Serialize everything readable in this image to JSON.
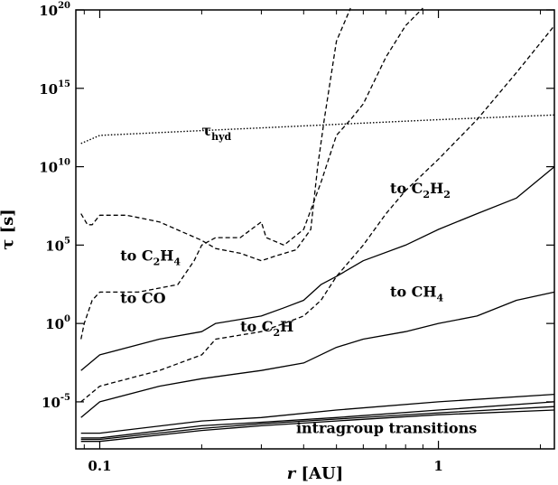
{
  "chart_data": {
    "type": "line",
    "xlabel_var": "r",
    "xlabel_unit": "[AU]",
    "ylabel_var": "τ",
    "ylabel_unit": "[s]",
    "x_scale": "log",
    "y_scale": "log",
    "xlim": [
      0.085,
      2.2
    ],
    "ylim": [
      1e-08,
      1e+20
    ],
    "x_ticks": [
      {
        "value": 0.1,
        "label": "0.1"
      },
      {
        "value": 1,
        "label": "1"
      }
    ],
    "y_ticks": [
      {
        "value": 1e-05,
        "base": "10",
        "exp": "-5"
      },
      {
        "value": 1.0,
        "base": "10",
        "exp": "0"
      },
      {
        "value": 100000.0,
        "base": "10",
        "exp": "5"
      },
      {
        "value": 10000000000.0,
        "base": "10",
        "exp": "10"
      },
      {
        "value": 1000000000000000.0,
        "base": "10",
        "exp": "15"
      },
      {
        "value": 1e+20,
        "base": "10",
        "exp": "20"
      }
    ],
    "annotations": [
      {
        "id": "tau-hyd",
        "main": "τ",
        "sub": "hyd",
        "anchor_x": 0.2,
        "anchor_y": 1000000000000.0
      },
      {
        "id": "to-c2h4",
        "pre": "to C",
        "sub1": "2",
        "mid": "H",
        "sub2": "4",
        "anchor_x": 0.115,
        "anchor_y": 10000.0
      },
      {
        "id": "to-co",
        "pre": "to CO",
        "anchor_x": 0.115,
        "anchor_y": 20.0
      },
      {
        "id": "to-c2h",
        "pre": "to C",
        "sub1": "2",
        "mid": "H",
        "anchor_x": 0.26,
        "anchor_y": 0.3
      },
      {
        "id": "to-c2h2",
        "pre": "to C",
        "sub1": "2",
        "mid": "H",
        "sub2": "2",
        "anchor_x": 0.72,
        "anchor_y": 200000000.0
      },
      {
        "id": "to-ch4",
        "pre": "to CH",
        "sub2": "4",
        "anchor_x": 0.72,
        "anchor_y": 50.0
      },
      {
        "id": "intragroup",
        "pre": "intragroup transitions",
        "anchor_x": 0.38,
        "anchor_y": 1e-07
      }
    ],
    "series": [
      {
        "id": "tau-hyd",
        "style": "dotted",
        "x": [
          0.088,
          0.1,
          0.2,
          0.3,
          0.5,
          1.0,
          2.2
        ],
        "y": [
          300000000000.0,
          1000000000000.0,
          2000000000000.0,
          3000000000000.0,
          5000000000000.0,
          10000000000000.0,
          20000000000000.0
        ]
      },
      {
        "id": "to-c2h4",
        "style": "dashed",
        "x": [
          0.088,
          0.092,
          0.095,
          0.1,
          0.12,
          0.15,
          0.2,
          0.22,
          0.26,
          0.3,
          0.33,
          0.38,
          0.42,
          0.44,
          0.46,
          0.5,
          0.55
        ],
        "y": [
          10000000.0,
          2000000.0,
          2000000.0,
          8000000.0,
          8000000.0,
          3000000.0,
          200000.0,
          60000.0,
          30000.0,
          10000.0,
          20000.0,
          50000.0,
          1000000.0,
          10000000000.0,
          10000000000000.0,
          1e+18,
          1e+21
        ]
      },
      {
        "id": "to-co",
        "style": "dashed",
        "x": [
          0.088,
          0.09,
          0.095,
          0.1,
          0.13,
          0.17,
          0.19,
          0.2,
          0.22,
          0.26,
          0.3,
          0.31,
          0.35,
          0.4,
          0.45,
          0.5,
          0.55,
          0.6,
          0.7,
          0.8,
          0.9
        ],
        "y": [
          0.1,
          1.0,
          30.0,
          100.0,
          100.0,
          300.0,
          10000.0,
          100000.0,
          300000.0,
          300000.0,
          3000000.0,
          300000.0,
          100000.0,
          1000000.0,
          1000000000.0,
          1000000000000.0,
          10000000000000.0,
          100000000000000.0,
          1e+17,
          1e+19,
          1e+21
        ]
      },
      {
        "id": "to-c2h2",
        "style": "dashed",
        "x": [
          0.088,
          0.1,
          0.15,
          0.2,
          0.22,
          0.3,
          0.35,
          0.4,
          0.45,
          0.5,
          0.6,
          0.7,
          0.8,
          1.0,
          1.3,
          1.7,
          2.2
        ],
        "y": [
          1e-05,
          0.0001,
          0.001,
          0.01,
          0.1,
          0.3,
          1.0,
          3.0,
          30.0,
          1000.0,
          100000.0,
          10000000.0,
          300000000.0,
          30000000000.0,
          10000000000000.0,
          1e+16,
          1e+19
        ]
      },
      {
        "id": "to-c2h",
        "style": "solid",
        "x": [
          0.088,
          0.1,
          0.15,
          0.2,
          0.22,
          0.3,
          0.35,
          0.4,
          0.45,
          0.5,
          0.6,
          0.8,
          1.0,
          1.3,
          1.7,
          2.2
        ],
        "y": [
          0.001,
          0.01,
          0.1,
          0.3,
          1.0,
          3.0,
          10.0,
          30.0,
          300.0,
          1000.0,
          10000.0,
          100000.0,
          1000000.0,
          10000000.0,
          100000000.0,
          10000000000.0
        ]
      },
      {
        "id": "to-ch4",
        "style": "solid",
        "x": [
          0.088,
          0.1,
          0.15,
          0.2,
          0.3,
          0.4,
          0.5,
          0.6,
          0.8,
          1.0,
          1.3,
          1.7,
          2.2
        ],
        "y": [
          1e-06,
          1e-05,
          0.0001,
          0.0003,
          0.001,
          0.003,
          0.03,
          0.1,
          0.3,
          1.0,
          3.0,
          30.0,
          100.0
        ]
      },
      {
        "id": "intragroup-1",
        "style": "solid",
        "x": [
          0.088,
          0.1,
          0.2,
          0.3,
          0.5,
          1.0,
          2.2
        ],
        "y": [
          1e-07,
          1e-07,
          6e-07,
          1e-06,
          3e-06,
          1e-05,
          3e-05
        ]
      },
      {
        "id": "intragroup-2",
        "style": "solid",
        "x": [
          0.088,
          0.1,
          0.2,
          0.3,
          0.5,
          1.0,
          2.2
        ],
        "y": [
          5e-08,
          5e-08,
          3e-07,
          5e-07,
          1e-06,
          3e-06,
          1e-05
        ]
      },
      {
        "id": "intragroup-3",
        "style": "solid",
        "x": [
          0.088,
          0.1,
          0.2,
          0.3,
          0.5,
          1.0,
          2.2
        ],
        "y": [
          4e-08,
          4e-08,
          2e-07,
          4e-07,
          8e-07,
          2e-06,
          5e-06
        ]
      },
      {
        "id": "intragroup-4",
        "style": "solid",
        "x": [
          0.088,
          0.1,
          0.2,
          0.3,
          0.5,
          1.0,
          2.2
        ],
        "y": [
          3e-08,
          3e-08,
          1.5e-07,
          3e-07,
          6e-07,
          1.5e-06,
          3e-06
        ]
      }
    ]
  }
}
